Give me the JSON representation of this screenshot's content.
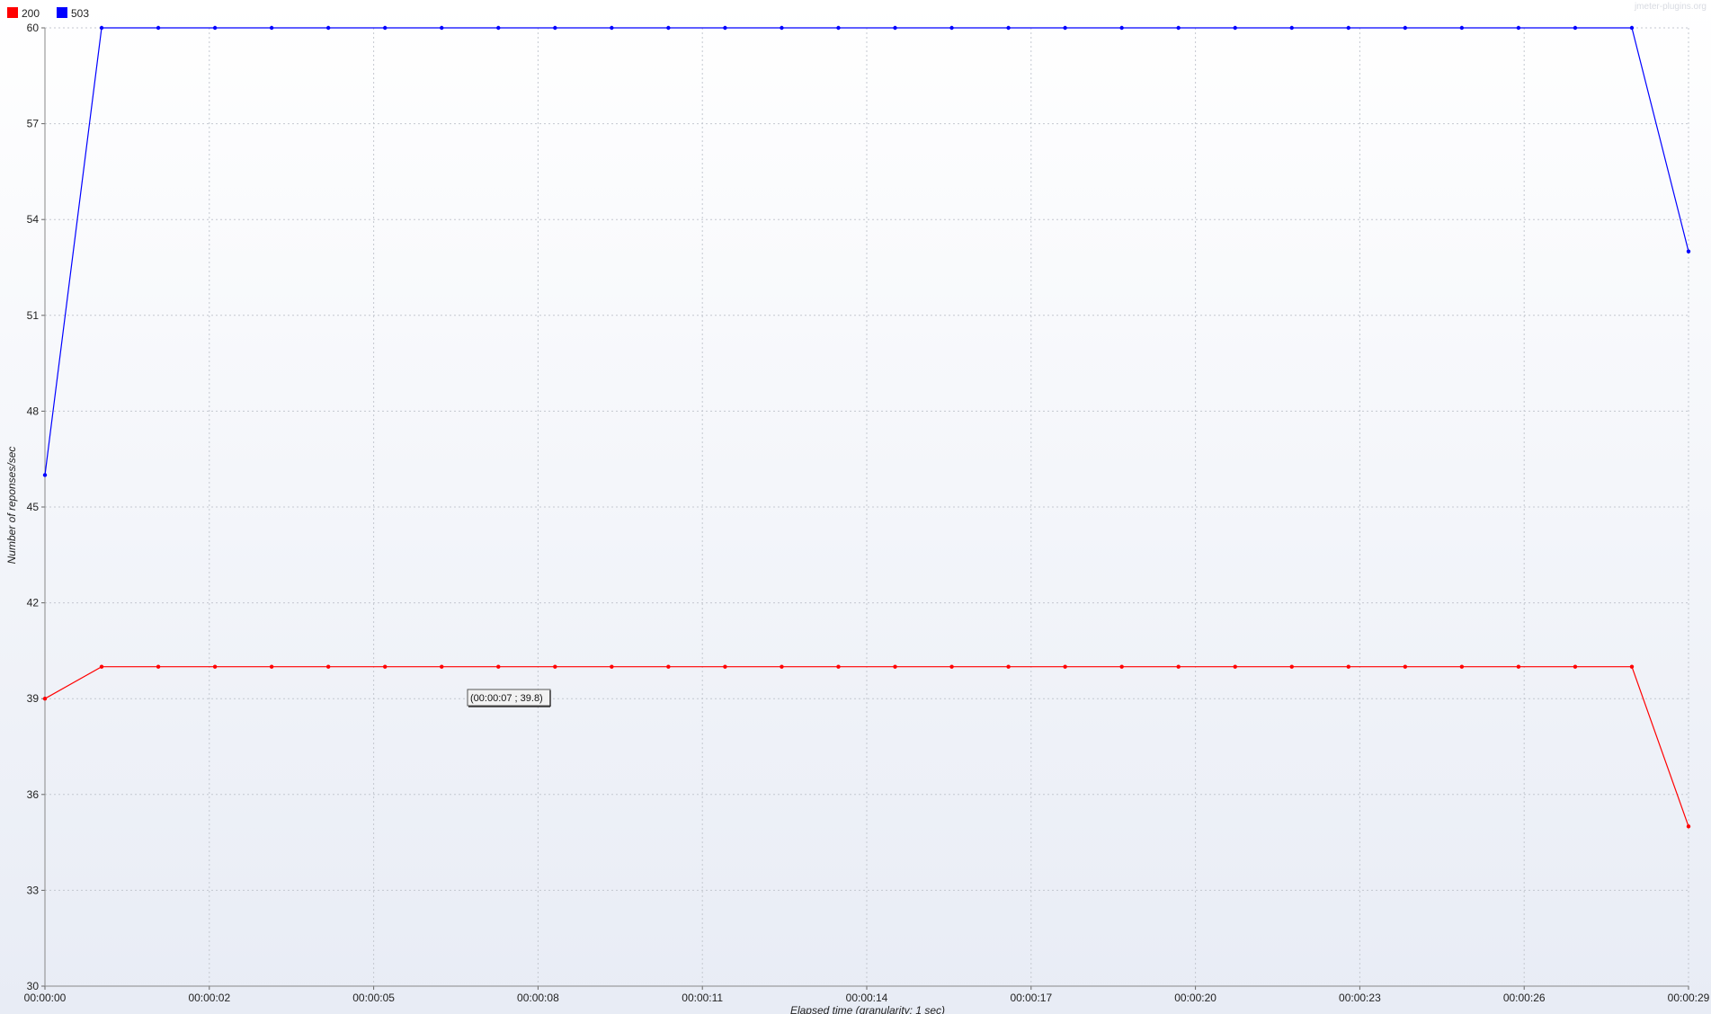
{
  "watermark": "jmeter-plugins.org",
  "tooltip": "(00:00:07 ; 39.8)",
  "chart_data": {
    "type": "line",
    "xlabel": "Elapsed time (granularity: 1 sec)",
    "ylabel": "Number of reponses/sec",
    "ylim": [
      30,
      60
    ],
    "xlim": [
      0,
      29
    ],
    "grid": true,
    "legend_position": "top-left",
    "x_tick_values": [
      0,
      2.9,
      5.8,
      8.7,
      11.6,
      14.5,
      17.4,
      20.3,
      23.2,
      26.1,
      29
    ],
    "x_tick_labels": [
      "00:00:00",
      "00:00:02",
      "00:00:05",
      "00:00:08",
      "00:00:11",
      "00:00:14",
      "00:00:17",
      "00:00:20",
      "00:00:23",
      "00:00:26",
      "00:00:29"
    ],
    "y_ticks": [
      30,
      33,
      36,
      39,
      42,
      45,
      48,
      51,
      54,
      57,
      60
    ],
    "x": [
      0,
      1,
      2,
      3,
      4,
      5,
      6,
      7,
      8,
      9,
      10,
      11,
      12,
      13,
      14,
      15,
      16,
      17,
      18,
      19,
      20,
      21,
      22,
      23,
      24,
      25,
      26,
      27,
      28,
      29
    ],
    "series": [
      {
        "name": "200",
        "color": "#ff0000",
        "values": [
          39,
          40,
          40,
          40,
          40,
          40,
          40,
          40,
          40,
          40,
          40,
          40,
          40,
          40,
          40,
          40,
          40,
          40,
          40,
          40,
          40,
          40,
          40,
          40,
          40,
          40,
          40,
          40,
          40,
          35
        ]
      },
      {
        "name": "503",
        "color": "#0000ff",
        "values": [
          46,
          60,
          60,
          60,
          60,
          60,
          60,
          60,
          60,
          60,
          60,
          60,
          60,
          60,
          60,
          60,
          60,
          60,
          60,
          60,
          60,
          60,
          60,
          60,
          60,
          60,
          60,
          60,
          60,
          53
        ]
      }
    ]
  }
}
